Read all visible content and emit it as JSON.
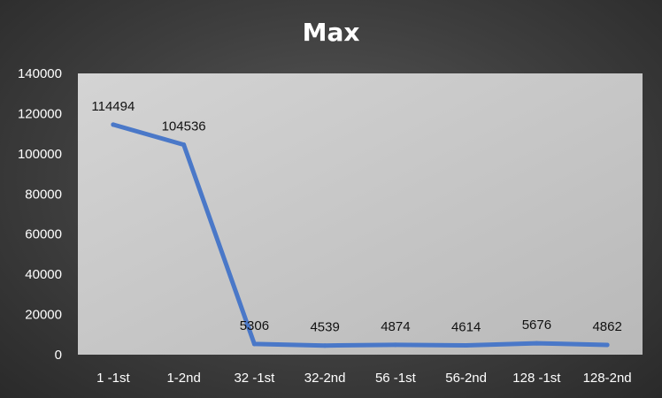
{
  "chart_data": {
    "type": "line",
    "title": "Max",
    "xlabel": "",
    "ylabel": "",
    "categories": [
      "1 -1st",
      "1-2nd",
      "32 -1st",
      "32-2nd",
      "56 -1st",
      "56-2nd",
      "128 -1st",
      "128-2nd"
    ],
    "series": [
      {
        "name": "Max",
        "values": [
          114494,
          104536,
          5306,
          4539,
          4874,
          4614,
          5676,
          4862
        ],
        "data_labels": [
          "114494",
          "104536",
          "5306",
          "4539",
          "4874",
          "4614",
          "5676",
          "4862"
        ]
      }
    ],
    "ylim": [
      0,
      140000
    ],
    "yticks": [
      0,
      20000,
      40000,
      60000,
      80000,
      100000,
      120000,
      140000
    ],
    "ytick_labels": [
      "0",
      "20000",
      "40000",
      "60000",
      "80000",
      "100000",
      "120000",
      "140000"
    ],
    "grid": false,
    "legend": "none",
    "colors": {
      "line": "#4a78c8",
      "plot_area": "#c9c9c9",
      "background": "#444444",
      "text": "#ffffff",
      "data_label_text": "#111111"
    }
  }
}
